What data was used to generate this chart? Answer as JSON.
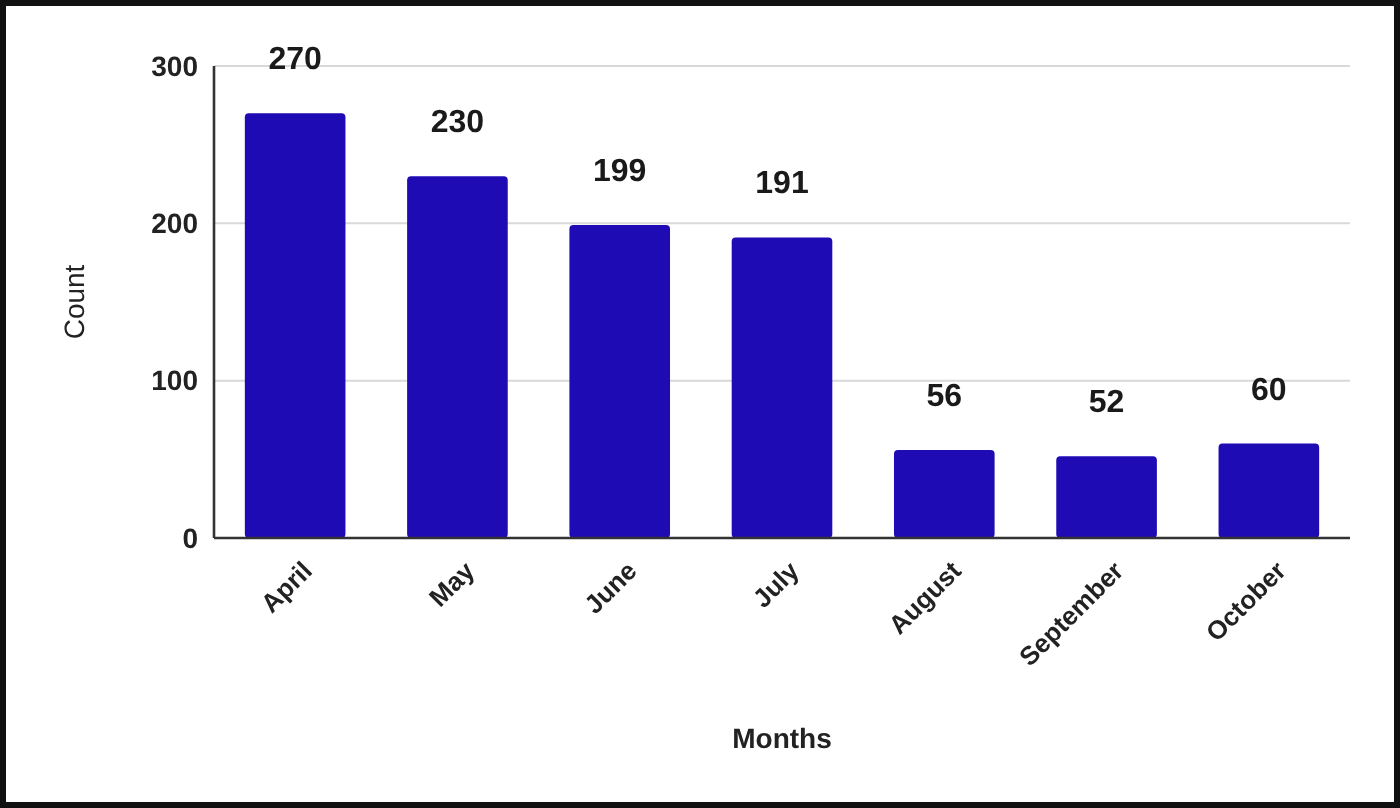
{
  "chart_data": {
    "type": "bar",
    "xlabel": "Months",
    "ylabel": "Count",
    "categories": [
      "April",
      "May",
      "June",
      "July",
      "August",
      "September",
      "October"
    ],
    "values": [
      270,
      230,
      199,
      191,
      56,
      52,
      60
    ],
    "color": "#1e0bb4",
    "ylim": [
      0,
      300
    ],
    "yticks": [
      0,
      100,
      200,
      300
    ],
    "grid": "y",
    "data_labels": true
  }
}
